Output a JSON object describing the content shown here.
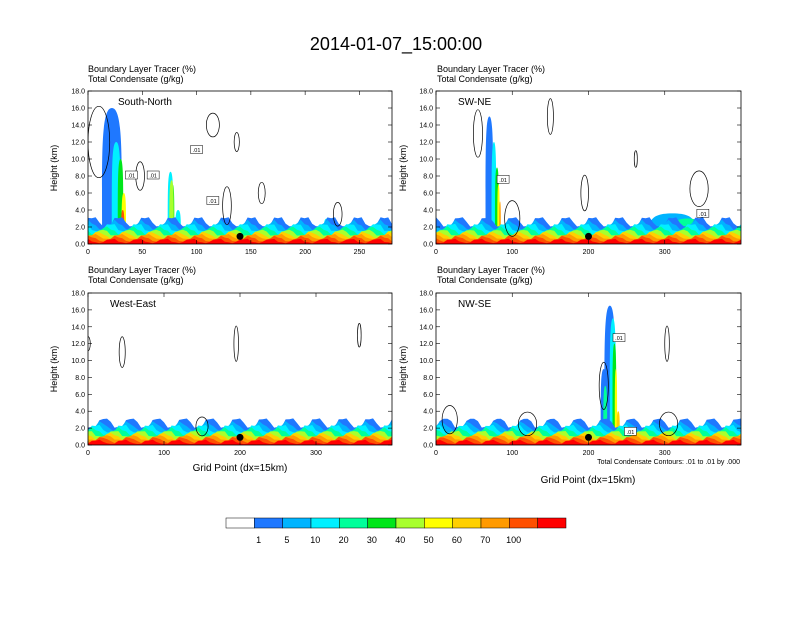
{
  "title": "2014-01-07_15:00:00",
  "panel_subtitle_line1": "Boundary Layer Tracer    (%)",
  "panel_subtitle_line2": "Total Condensate    (g/kg)",
  "colors": {
    "levels": [
      "#ffffff",
      "#1f78ff",
      "#00b4ff",
      "#00f0ff",
      "#00ff9a",
      "#00e61a",
      "#a8ff2d",
      "#ffff00",
      "#ffd000",
      "#ff9a00",
      "#ff5000",
      "#ff0000"
    ],
    "contour": "#000000",
    "marker": "#000000"
  },
  "colorbar": {
    "labels": [
      "1",
      "5",
      "10",
      "20",
      "30",
      "40",
      "50",
      "60",
      "70",
      "100"
    ]
  },
  "contour_note": "Total Condensate Contours: .01 to .01 by .000",
  "chart_data": [
    {
      "type": "heatmap",
      "name": "South-North",
      "label": "South-North",
      "xlabel": "",
      "ylabel": "Height (km)",
      "xlim": [
        0,
        280
      ],
      "ylim": [
        0,
        18
      ],
      "xticks": [
        "0",
        "50",
        "100",
        "150",
        "200",
        "250"
      ],
      "xtick_values": [
        0,
        50,
        100,
        150,
        200,
        250
      ],
      "yticks": [
        "0.0",
        "2.0",
        "4.0",
        "6.0",
        "8.0",
        "10.0",
        "12.0",
        "14.0",
        "16.0",
        "18.0"
      ],
      "marker_x": 140,
      "contour_labels": [
        ".01",
        ".01",
        ".01",
        ".01"
      ]
    },
    {
      "type": "heatmap",
      "name": "SW-NE",
      "label": "SW-NE",
      "xlabel": "",
      "ylabel": "Height (km)",
      "xlim": [
        0,
        400
      ],
      "ylim": [
        0,
        18
      ],
      "xticks": [
        "0",
        "100",
        "200",
        "300"
      ],
      "xtick_values": [
        0,
        100,
        200,
        300
      ],
      "yticks": [
        "0.0",
        "2.0",
        "4.0",
        "6.0",
        "8.0",
        "10.0",
        "12.0",
        "14.0",
        "16.0",
        "18.0"
      ],
      "marker_x": 200,
      "contour_labels": [
        ".01",
        ".01"
      ]
    },
    {
      "type": "heatmap",
      "name": "West-East",
      "label": "West-East",
      "xlabel": "Grid Point (dx=15km)",
      "ylabel": "Height (km)",
      "xlim": [
        0,
        400
      ],
      "ylim": [
        0,
        18
      ],
      "xticks": [
        "0",
        "100",
        "200",
        "300"
      ],
      "xtick_values": [
        0,
        100,
        200,
        300
      ],
      "yticks": [
        "0.0",
        "2.0",
        "4.0",
        "6.0",
        "8.0",
        "10.0",
        "12.0",
        "14.0",
        "16.0",
        "18.0"
      ],
      "marker_x": 200,
      "contour_labels": []
    },
    {
      "type": "heatmap",
      "name": "NW-SE",
      "label": "NW-SE",
      "xlabel": "Grid Point (dx=15km)",
      "ylabel": "Height (km)",
      "xlim": [
        0,
        400
      ],
      "ylim": [
        0,
        18
      ],
      "xticks": [
        "0",
        "100",
        "200",
        "300"
      ],
      "xtick_values": [
        0,
        100,
        200,
        300
      ],
      "yticks": [
        "0.0",
        "2.0",
        "4.0",
        "6.0",
        "8.0",
        "10.0",
        "12.0",
        "14.0",
        "16.0",
        "18.0"
      ],
      "marker_x": 200,
      "contour_labels": [
        ".01",
        ".01"
      ]
    }
  ]
}
